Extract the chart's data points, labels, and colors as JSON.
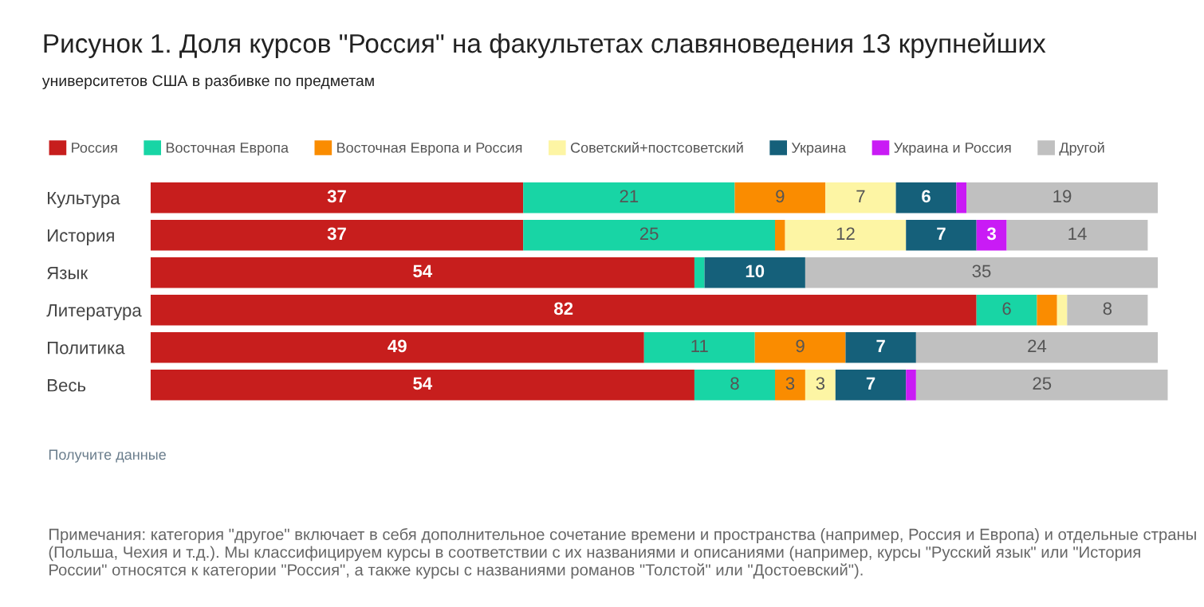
{
  "chart_data": {
    "type": "bar",
    "orientation": "horizontal",
    "stacked": true,
    "title": "Рисунок 1. Доля курсов \"Россия\" на факультетах славяноведения 13 крупнейших",
    "subtitle": "университетов США в разбивке по предметам",
    "categories": [
      "Культура",
      "История",
      "Язык",
      "Литература",
      "Политика",
      "Весь"
    ],
    "series": [
      {
        "name": "Россия",
        "color": "#c71e1d",
        "values": [
          37,
          37,
          54,
          82,
          49,
          54
        ],
        "value_labels": [
          "37",
          "37",
          "54",
          "82",
          "49",
          "54"
        ]
      },
      {
        "name": "Восточная Европа",
        "color": "#18d5a5",
        "values": [
          21,
          25,
          1,
          6,
          11,
          8
        ],
        "value_labels": [
          "21",
          "25",
          null,
          "6",
          "11",
          "8"
        ]
      },
      {
        "name": "Восточная Европа и Россия",
        "color": "#fa8c00",
        "values": [
          9,
          1,
          0,
          2,
          9,
          3
        ],
        "value_labels": [
          "9",
          null,
          null,
          null,
          "9",
          "3"
        ]
      },
      {
        "name": "Советский+постсоветский",
        "color": "#fdf5a4",
        "values": [
          7,
          12,
          0,
          1,
          0,
          3
        ],
        "value_labels": [
          "7",
          "12",
          null,
          null,
          null,
          "3"
        ]
      },
      {
        "name": "Украина",
        "color": "#15607a",
        "values": [
          6,
          7,
          10,
          0,
          7,
          7
        ],
        "value_labels": [
          "6",
          "7",
          "10",
          null,
          "7",
          "7"
        ]
      },
      {
        "name": "Украина и Россия",
        "color": "#c91bf5",
        "values": [
          1,
          3,
          0,
          0,
          0,
          1
        ],
        "value_labels": [
          null,
          "3",
          null,
          null,
          null,
          null
        ]
      },
      {
        "name": "Другой",
        "color": "#c0c0c0",
        "values": [
          19,
          14,
          35,
          8,
          24,
          25
        ],
        "value_labels": [
          "19",
          "14",
          "35",
          "8",
          "24",
          "25"
        ]
      }
    ],
    "legend": "top",
    "annotations": [
      "Получите данные",
      "Примечания: категория \"другое\" включает в себя дополнительное сочетание времени и пространства (например, Россия и Европа) и отдельные страны (Польша, Чехия и т.д.). Мы классифицируем курсы в соответствии с их названиями и описаниями (например, курсы \"Русский язык\" или \"История России\" относятся к категории \"Россия\", а также курсы с названиями романов \"Толстой\" или \"Достоевский\")."
    ]
  }
}
